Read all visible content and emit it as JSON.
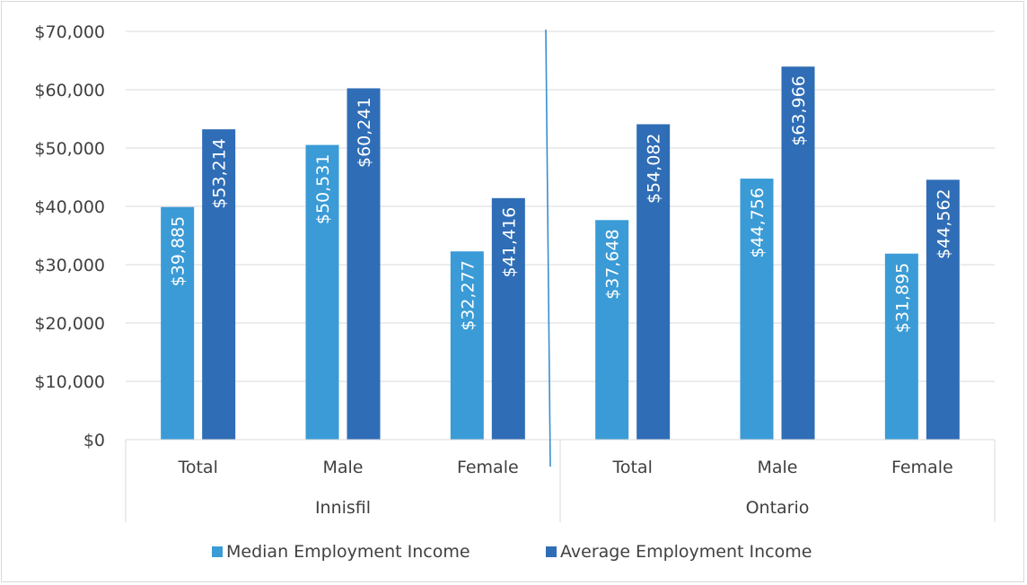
{
  "chart_data": {
    "type": "bar",
    "title": "",
    "xlabel": "",
    "ylabel": "",
    "ylim": [
      0,
      70000
    ],
    "yticks": [
      0,
      10000,
      20000,
      30000,
      40000,
      50000,
      60000,
      70000
    ],
    "ytick_labels": [
      "$0",
      "$10,000",
      "$20,000",
      "$30,000",
      "$40,000",
      "$50,000",
      "$60,000",
      "$70,000"
    ],
    "grid": true,
    "legend_position": "bottom",
    "groups": [
      {
        "label": "Innisfil",
        "categories": [
          "Total",
          "Male",
          "Female"
        ]
      },
      {
        "label": "Ontario",
        "categories": [
          "Total",
          "Male",
          "Female"
        ]
      }
    ],
    "series": [
      {
        "name": "Median Employment Income",
        "color": "#3a9bd6",
        "values": [
          39885,
          50531,
          32277,
          37648,
          44756,
          31895
        ],
        "labels": [
          "$39,885",
          "$50,531",
          "$32,277",
          "$37,648",
          "$44,756",
          "$31,895"
        ]
      },
      {
        "name": "Average Employment Income",
        "color": "#2f6db6",
        "values": [
          53214,
          60241,
          41416,
          54082,
          63966,
          44562
        ],
        "labels": [
          "$53,214",
          "$60,241",
          "$41,416",
          "$54,082",
          "$63,966",
          "$44,562"
        ]
      }
    ]
  }
}
